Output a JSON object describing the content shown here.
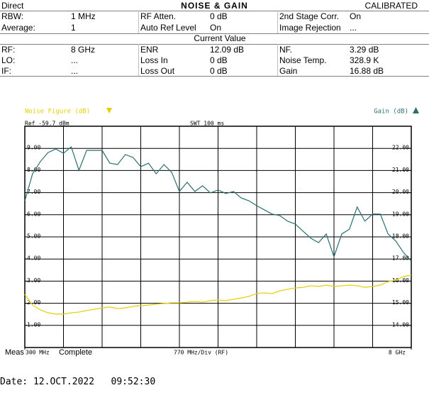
{
  "header": {
    "mode": "Direct",
    "title": "NOISE & GAIN",
    "status": "CALIBRATED"
  },
  "settings": [
    [
      "RBW:",
      "1 MHz",
      "RF Atten.",
      "0 dB",
      "2nd Stage Corr.",
      "On"
    ],
    [
      "Average:",
      "1",
      "Auto Ref Level",
      "On",
      "Image Rejection",
      "..."
    ]
  ],
  "current_title": "Current Value",
  "current": [
    [
      "RF:",
      "8 GHz",
      "ENR",
      "12.09 dB",
      "NF.",
      "3.29 dB"
    ],
    [
      "LO:",
      "...",
      "Loss In",
      "0 dB",
      "Noise Temp.",
      "328.9 K"
    ],
    [
      "IF:",
      "...",
      "Loss Out",
      "0 dB",
      "Gain",
      "16.88 dB"
    ]
  ],
  "footer": {
    "meas": "Meas",
    "status": "Complete",
    "date": "Date: 12.OCT.2022   09:52:30"
  },
  "chart_data": {
    "type": "line",
    "ref": "Ref -59.7 dBm",
    "sweep": "SWT 100 ms",
    "x_label": "770 MHz/Div (RF)",
    "x": [
      300,
      454,
      608,
      762,
      916,
      1070,
      1224,
      1378,
      1532,
      1686,
      1840,
      1994,
      2148,
      2302,
      2456,
      2610,
      2764,
      2918,
      3072,
      3226,
      3380,
      3534,
      3688,
      3842,
      3996,
      4150,
      4304,
      4458,
      4612,
      4766,
      4920,
      5074,
      5228,
      5382,
      5536,
      5690,
      5844,
      5998,
      6152,
      6306,
      6460,
      6614,
      6768,
      6922,
      7076,
      7230,
      7384,
      7538,
      7692,
      7846,
      8000
    ],
    "xlim": [
      300,
      8000
    ],
    "xticks": [
      {
        "value": 300,
        "label": "300 MHz"
      },
      {
        "value": 8000,
        "label": "8 GHz"
      }
    ],
    "ylim": [
      0,
      10
    ],
    "yticks": [
      {
        "value": 1,
        "label": "1.00"
      },
      {
        "value": 2,
        "label": "2.00"
      },
      {
        "value": 3,
        "label": "3.00"
      },
      {
        "value": 4,
        "label": "4.00"
      },
      {
        "value": 5,
        "label": "5.00"
      },
      {
        "value": 6,
        "label": "6.00"
      },
      {
        "value": 7,
        "label": "7.00"
      },
      {
        "value": 8,
        "label": "8.00"
      },
      {
        "value": 9,
        "label": "9.00"
      }
    ],
    "y2lim": [
      13,
      23
    ],
    "y2ticks": [
      {
        "value": 14,
        "label": "14.00"
      },
      {
        "value": 15,
        "label": "15.00"
      },
      {
        "value": 16,
        "label": "16.00"
      },
      {
        "value": 17,
        "label": "17.00"
      },
      {
        "value": 18,
        "label": "18.00"
      },
      {
        "value": 19,
        "label": "19.00"
      },
      {
        "value": 20,
        "label": "20.00"
      },
      {
        "value": 21,
        "label": "21.00"
      },
      {
        "value": 22,
        "label": "22.00"
      }
    ],
    "series": [
      {
        "name": "Noise Figure (dB)",
        "color": "#e6cf00",
        "values": [
          2.4,
          1.92,
          1.7,
          1.57,
          1.51,
          1.51,
          1.57,
          1.6,
          1.67,
          1.73,
          1.79,
          1.83,
          1.76,
          1.79,
          1.86,
          1.89,
          1.92,
          1.96,
          1.99,
          2.02,
          2.02,
          2.05,
          2.08,
          2.05,
          2.12,
          2.15,
          2.12,
          2.18,
          2.24,
          2.31,
          2.44,
          2.47,
          2.44,
          2.56,
          2.63,
          2.69,
          2.72,
          2.79,
          2.76,
          2.82,
          2.76,
          2.79,
          2.82,
          2.79,
          2.72,
          2.76,
          2.82,
          2.98,
          3.04,
          3.21,
          3.27
        ]
      },
      {
        "name": "Gain (dB)",
        "color": "#2b6f70",
        "axis": "y2",
        "values": [
          19.63,
          20.85,
          21.4,
          21.81,
          21.97,
          21.78,
          22.07,
          21.01,
          21.91,
          21.91,
          21.91,
          21.33,
          21.27,
          21.72,
          21.59,
          21.17,
          21.33,
          20.85,
          21.27,
          20.92,
          20.05,
          20.47,
          20.05,
          20.31,
          19.99,
          20.12,
          19.96,
          20.05,
          19.76,
          19.63,
          19.41,
          19.22,
          19.03,
          18.96,
          18.71,
          18.58,
          18.26,
          17.94,
          17.74,
          18.13,
          17.1,
          18.13,
          18.35,
          19.35,
          18.71,
          19.03,
          19.03,
          18.13,
          17.81,
          17.29,
          16.91
        ]
      }
    ]
  }
}
